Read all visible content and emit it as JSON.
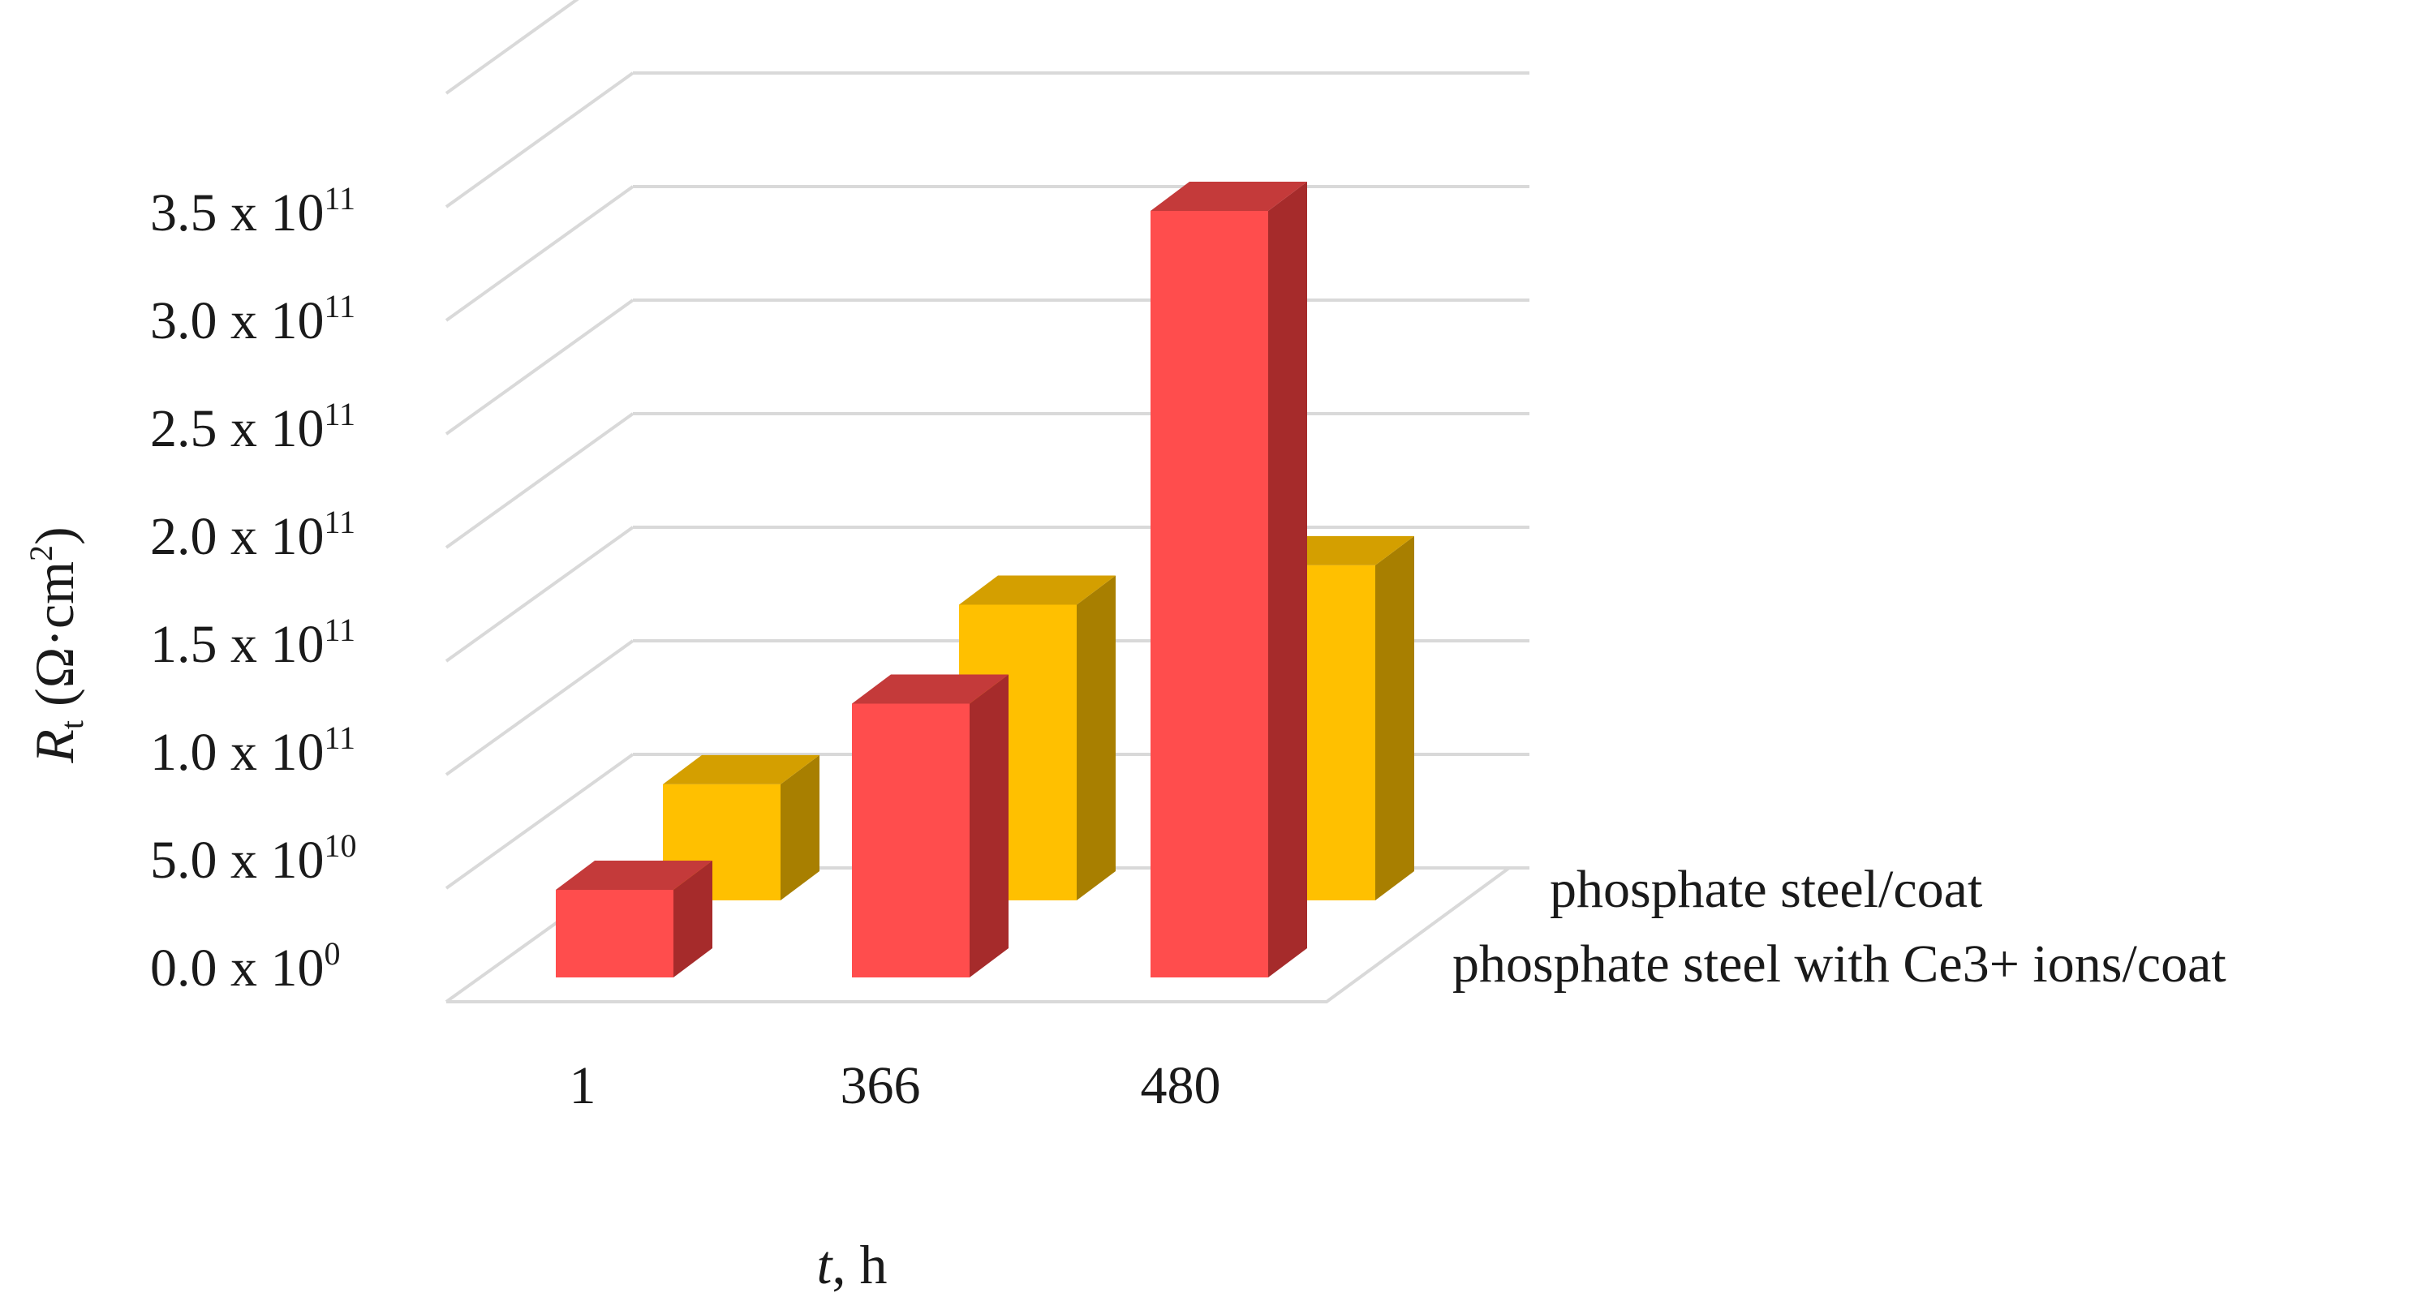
{
  "chart_data": {
    "type": "bar",
    "categories": [
      "1",
      "366",
      "480"
    ],
    "series": [
      {
        "name": "phosphate steel with Ce3+ ions/coat",
        "values": [
          40000000000.0,
          125000000000.0,
          350000000000.0
        ],
        "color": "#ff4d4d",
        "side_color": "#a62b2b",
        "top_color": "#c43a3a"
      },
      {
        "name": "phosphate steel/coat",
        "values": [
          53000000000.0,
          135000000000.0,
          153000000000.0
        ],
        "color": "#ffc000",
        "side_color": "#a87f00",
        "top_color": "#d49f00"
      }
    ],
    "yticks": [
      {
        "mantissa": "0.0 x 10",
        "exp": "0"
      },
      {
        "mantissa": "5.0 x 10",
        "exp": "10"
      },
      {
        "mantissa": "1.0 x 10",
        "exp": "11"
      },
      {
        "mantissa": "1.5 x 10",
        "exp": "11"
      },
      {
        "mantissa": "2.0 x 10",
        "exp": "11"
      },
      {
        "mantissa": "2.5 x 10",
        "exp": "11"
      },
      {
        "mantissa": "3.0 x 10",
        "exp": "11"
      },
      {
        "mantissa": "3.5 x 10",
        "exp": "11"
      }
    ],
    "ylim": [
      0,
      400000000000.0
    ],
    "ylabel": {
      "symbol": "R",
      "subscript": "t",
      "unit_open": " (Ω·cm",
      "unit_exp": "2",
      "unit_close": ")"
    },
    "xlabel": {
      "symbol": "t",
      "rest": ", h"
    },
    "grid": true,
    "projection": "3d"
  }
}
